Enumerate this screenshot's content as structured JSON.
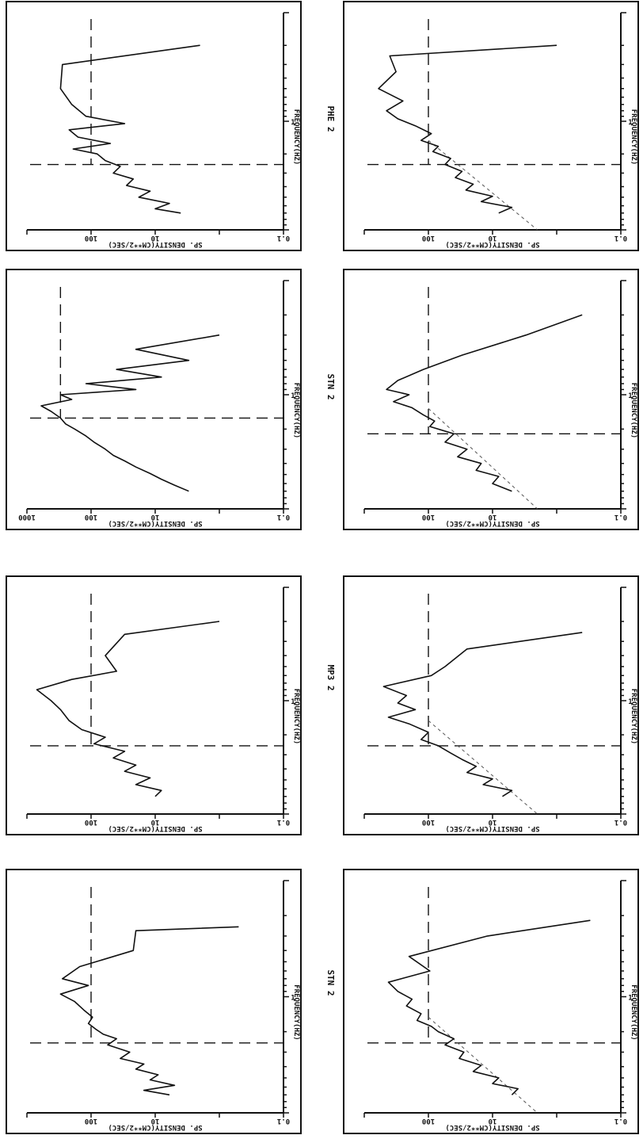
{
  "page": {
    "header": ""
  },
  "captions": [
    "STN 2",
    "MP3 2",
    "STN 2",
    "PHE 2"
  ],
  "chart_data": [
    {
      "type": "line",
      "column": 0,
      "row": 0,
      "title": "",
      "xlabel": "FREQUENCY(HZ)",
      "ylabel": "SP. DENSITY(CM**2/SEC)",
      "xscale": "log",
      "yscale": "log",
      "xlim": [
        0.1,
        10
      ],
      "ylim": [
        0.1,
        1000
      ],
      "x_tick_label": "1",
      "y_tick_labels": [
        "0.1",
        "10",
        "100"
      ],
      "ref_level": 100,
      "ref_freq": 2.5,
      "slope_line": false,
      "x": [
        0.25,
        0.27,
        0.4,
        0.55,
        0.7,
        0.8,
        0.95,
        1.1,
        1.3,
        1.5,
        1.7,
        1.9,
        2.1,
        2.3,
        2.6,
        3,
        3.4,
        3.8,
        4.2,
        4.7,
        5.2,
        5.8,
        6.4,
        7
      ],
      "y": [
        0.5,
        20,
        22,
        150,
        280,
        110,
        300,
        180,
        130,
        95,
        110,
        85,
        65,
        40,
        55,
        25,
        35,
        15,
        20,
        9,
        12,
        5,
        15,
        6
      ]
    },
    {
      "type": "line",
      "column": 0,
      "row": 1,
      "title": "",
      "xlabel": "FREQUENCY(HZ)",
      "ylabel": "SP. DENSITY(CM**2/SEC)",
      "xscale": "log",
      "yscale": "log",
      "xlim": [
        0.1,
        10
      ],
      "ylim": [
        0.1,
        1000
      ],
      "x_tick_label": "1",
      "y_tick_labels": [
        "0.1",
        "10",
        "100"
      ],
      "ref_level": 100,
      "ref_freq": 2.5,
      "slope_line": true,
      "x": [
        0.22,
        0.3,
        0.45,
        0.6,
        0.75,
        0.9,
        1.05,
        1.2,
        1.4,
        1.6,
        1.8,
        2,
        2.3,
        2.6,
        3,
        3.4,
        3.9,
        4.4,
        5,
        5.6,
        6.2,
        7
      ],
      "y": [
        0.3,
        12,
        200,
        95,
        420,
        300,
        180,
        220,
        130,
        150,
        90,
        70,
        40,
        55,
        28,
        33,
        15,
        20,
        8,
        10,
        4,
        5
      ]
    },
    {
      "type": "line",
      "column": 1,
      "row": 0,
      "title": "",
      "xlabel": "FREQUENCY(HZ)",
      "ylabel": "SP. DENSITY(CM**2/SEC)",
      "xscale": "log",
      "yscale": "log",
      "xlim": [
        0.1,
        10
      ],
      "ylim": [
        0.1,
        1000
      ],
      "x_tick_label": "1",
      "y_tick_labels": [
        "0.1",
        "10",
        "100"
      ],
      "ref_level": 100,
      "ref_freq": 2.5,
      "slope_line": false,
      "x": [
        0.2,
        0.26,
        0.4,
        0.55,
        0.65,
        0.8,
        1,
        1.2,
        1.5,
        1.8,
        2.1,
        2.4,
        2.8,
        3.2,
        3.7,
        4.2,
        4.8,
        5.5,
        6.2,
        7
      ],
      "y": [
        1,
        30,
        60,
        40,
        200,
        700,
        420,
        300,
        220,
        140,
        60,
        90,
        30,
        45,
        20,
        30,
        12,
        20,
        8,
        10
      ]
    },
    {
      "type": "line",
      "column": 1,
      "row": 1,
      "title": "",
      "xlabel": "FREQUENCY(HZ)",
      "ylabel": "SP. DENSITY(CM**2/SEC)",
      "xscale": "log",
      "yscale": "log",
      "xlim": [
        0.1,
        10
      ],
      "ylim": [
        0.1,
        1000
      ],
      "x_tick_label": "1",
      "y_tick_labels": [
        "0.1",
        "10",
        "100"
      ],
      "ref_level": 100,
      "ref_freq": 2.5,
      "slope_line": true,
      "x": [
        0.25,
        0.35,
        0.5,
        0.6,
        0.75,
        0.9,
        1.05,
        1.2,
        1.4,
        1.6,
        1.9,
        2.2,
        2.5,
        2.9,
        3.3,
        3.8,
        4.3,
        4.9,
        5.5,
        6.2,
        7
      ],
      "y": [
        0.4,
        25,
        55,
        90,
        500,
        220,
        300,
        160,
        420,
        200,
        100,
        130,
        70,
        45,
        30,
        18,
        25,
        10,
        14,
        5,
        7
      ]
    },
    {
      "type": "line",
      "column": 2,
      "row": 0,
      "title": "",
      "xlabel": "FREQUENCY(HZ)",
      "ylabel": "SP. DENSITY(CM**2/SEC)",
      "xscale": "log",
      "yscale": "log",
      "xlim": [
        0.1,
        10
      ],
      "ylim": [
        0.1,
        1000
      ],
      "x_tick_label": "1",
      "y_tick_labels": [
        "0.1",
        "10",
        "100",
        "1000"
      ],
      "ref_level": 300,
      "ref_freq": 1.6,
      "slope_line": false,
      "x": [
        0.3,
        0.4,
        0.5,
        0.6,
        0.7,
        0.8,
        0.9,
        1,
        1.1,
        1.25,
        1.4,
        1.6,
        1.8,
        2,
        2.3,
        2.6,
        3,
        3.4,
        3.8,
        4.3,
        4.9,
        5.5,
        6.2,
        7
      ],
      "y": [
        1,
        20,
        3,
        40,
        8,
        120,
        20,
        300,
        200,
        600,
        420,
        300,
        250,
        180,
        120,
        90,
        60,
        45,
        30,
        20,
        12,
        8,
        5,
        3
      ]
    },
    {
      "type": "line",
      "column": 2,
      "row": 1,
      "title": "",
      "xlabel": "FREQUENCY(HZ)",
      "ylabel": "SP. DENSITY(CM**2/SEC)",
      "xscale": "log",
      "yscale": "log",
      "xlim": [
        0.1,
        10
      ],
      "ylim": [
        0.1,
        1000
      ],
      "x_tick_label": "1",
      "y_tick_labels": [
        "0.1",
        "10",
        "100"
      ],
      "ref_level": 100,
      "ref_freq": 2.2,
      "slope_line": true,
      "x": [
        0.2,
        0.3,
        0.45,
        0.6,
        0.75,
        0.9,
        1,
        1.15,
        1.3,
        1.5,
        1.7,
        1.9,
        2.2,
        2.6,
        3,
        3.5,
        4,
        4.6,
        5.2,
        6,
        7
      ],
      "y": [
        0.4,
        3,
        30,
        120,
        300,
        450,
        200,
        350,
        180,
        120,
        80,
        95,
        40,
        55,
        25,
        35,
        15,
        18,
        8,
        10,
        5
      ]
    },
    {
      "type": "line",
      "column": 3,
      "row": 0,
      "title": "",
      "xlabel": "FREQUENCY(HZ)",
      "ylabel": "SP. DENSITY(CM**2/SEC)",
      "xscale": "log",
      "yscale": "log",
      "xlim": [
        0.1,
        10
      ],
      "ylim": [
        0.1,
        1000
      ],
      "x_tick_label": "1",
      "y_tick_labels": [
        "0.1",
        "10",
        "100"
      ],
      "ref_level": 100,
      "ref_freq": 2.5,
      "slope_line": false,
      "x": [
        0.2,
        0.3,
        0.5,
        0.7,
        0.9,
        1.05,
        1.2,
        1.4,
        1.6,
        1.8,
        2,
        2.3,
        2.6,
        3,
        3.4,
        3.9,
        4.4,
        5,
        5.7,
        6.4,
        7
      ],
      "y": [
        2,
        280,
        300,
        200,
        120,
        30,
        220,
        160,
        50,
        190,
        80,
        60,
        35,
        45,
        22,
        28,
        12,
        18,
        6,
        10,
        4
      ]
    },
    {
      "type": "line",
      "column": 3,
      "row": 1,
      "title": "",
      "xlabel": "FREQUENCY(HZ)",
      "ylabel": "SP. DENSITY(CM**2/SEC)",
      "xscale": "log",
      "yscale": "log",
      "xlim": [
        0.1,
        10
      ],
      "ylim": [
        0.1,
        1000
      ],
      "x_tick_label": "1",
      "y_tick_labels": [
        "0.1",
        "10",
        "100"
      ],
      "ref_level": 100,
      "ref_freq": 2.5,
      "slope_line": true,
      "x": [
        0.2,
        0.25,
        0.35,
        0.5,
        0.65,
        0.8,
        0.95,
        1.1,
        1.3,
        1.5,
        1.7,
        1.9,
        2.2,
        2.5,
        2.9,
        3.3,
        3.8,
        4.3,
        4.9,
        5.5,
        6.2,
        7
      ],
      "y": [
        1,
        400,
        320,
        600,
        250,
        450,
        300,
        160,
        90,
        130,
        70,
        85,
        45,
        55,
        30,
        38,
        20,
        26,
        10,
        15,
        5,
        8
      ]
    }
  ]
}
